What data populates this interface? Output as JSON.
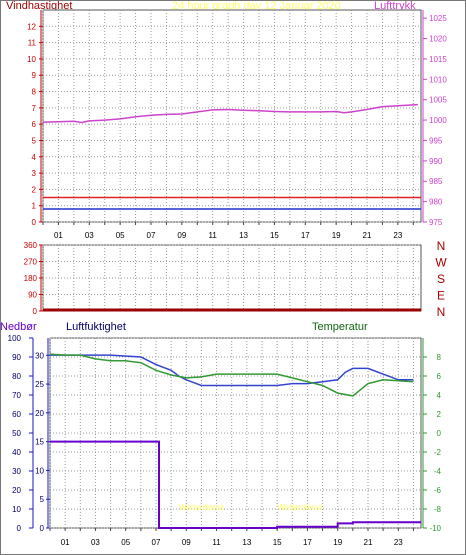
{
  "title": "24 hour graph day   12 Januar 2020",
  "colors": {
    "wind_label": "#990000",
    "title": "#ffff66",
    "pressure": "#cc44cc",
    "wind_red": "#dd2222",
    "wind_blue": "#2233cc",
    "dir_axis": "#aa0000",
    "rain": "#6600cc",
    "humidity": "#3344cc",
    "temperature": "#339933",
    "axis_red": "#cc0000",
    "axis_blue": "#1a1acc",
    "grid": "#9a9a9a"
  },
  "x_labels": [
    "01",
    "03",
    "05",
    "07",
    "09",
    "11",
    "13",
    "15",
    "17",
    "19",
    "21",
    "23"
  ],
  "chart_data": [
    {
      "type": "line",
      "left_label": "Vindhastighet",
      "right_label": "Lufttrykk",
      "left_ticks": [
        "0",
        "1",
        "2",
        "3",
        "4",
        "5",
        "6",
        "7",
        "8",
        "9",
        "10",
        "11",
        "12"
      ],
      "right_ticks": [
        "975",
        "980",
        "985",
        "990",
        "995",
        "1000",
        "1005",
        "1010",
        "1015",
        "1020",
        "1025"
      ],
      "ylim_left": [
        0,
        13
      ],
      "ylim_right": [
        975,
        1027
      ],
      "xlim": [
        0,
        24.5
      ],
      "series": [
        {
          "role": "pressure",
          "axis": "right",
          "x": [
            0,
            1,
            2,
            2.5,
            3,
            4,
            5,
            6,
            7,
            8,
            9,
            10,
            11,
            12,
            13,
            14,
            15,
            16,
            17,
            18,
            19,
            19.5,
            20,
            21,
            22,
            23,
            24.3
          ],
          "y": [
            999.5,
            999.6,
            999.7,
            999.4,
            999.8,
            1000,
            1000.3,
            1000.8,
            1001.2,
            1001.4,
            1001.5,
            1002,
            1002.5,
            1002.6,
            1002.4,
            1002.3,
            1002.1,
            1002,
            1002,
            1002,
            1002.1,
            1001.8,
            1002,
            1002.6,
            1003.3,
            1003.5,
            1003.8
          ]
        },
        {
          "role": "wind_red",
          "axis": "left",
          "x": [
            0,
            24.5
          ],
          "y": [
            1.5,
            1.5
          ]
        },
        {
          "role": "wind_blue",
          "axis": "left",
          "x": [
            0,
            24.5
          ],
          "y": [
            0.8,
            0.8
          ]
        }
      ]
    },
    {
      "type": "line",
      "left_ticks": [
        "0",
        "90",
        "180",
        "270",
        "360"
      ],
      "right_ticks": [
        "N",
        "E",
        "S",
        "W",
        "N"
      ],
      "ylim": [
        0,
        360
      ],
      "series": [
        {
          "role": "direction",
          "x": [
            0,
            24.5
          ],
          "y": [
            0,
            0
          ]
        }
      ]
    },
    {
      "type": "line",
      "labels": {
        "rain": "Nedbør",
        "humidity": "Luftfuktighet",
        "temperature": "Temperatur"
      },
      "rain_ticks": [
        "0",
        "5",
        "10",
        "15",
        "20",
        "25",
        "30"
      ],
      "humidity_ticks": [
        "0",
        "10",
        "20",
        "30",
        "40",
        "50",
        "60",
        "70",
        "80",
        "90",
        "100"
      ],
      "temp_ticks": [
        "-10",
        "-8",
        "-6",
        "-4",
        "-2",
        "0",
        "2",
        "4",
        "6",
        "8"
      ],
      "ylim_humidity": [
        0,
        100
      ],
      "ylim_temp": [
        -10,
        10
      ],
      "annotations": [
        {
          "text": "Wetterdienst",
          "x": 10
        },
        {
          "text": "Wetterdienst",
          "x": 16.5
        }
      ],
      "series": [
        {
          "role": "rain",
          "axis": "rain",
          "x": [
            0,
            7.2,
            7.2,
            15,
            15,
            19,
            19,
            20,
            20,
            24.5
          ],
          "y": [
            15,
            15,
            0,
            0,
            0.2,
            0.2,
            0.8,
            0.8,
            1,
            1
          ]
        },
        {
          "role": "humidity",
          "axis": "humidity",
          "x": [
            0,
            2,
            4,
            6,
            7,
            8,
            8.5,
            9,
            10,
            11,
            13,
            15,
            16,
            17,
            18,
            19,
            19.5,
            20,
            21,
            22,
            23,
            24
          ],
          "y": [
            91,
            91,
            91,
            90,
            86,
            83,
            80,
            78,
            75,
            75,
            75,
            75,
            76,
            76,
            77,
            78,
            82,
            84,
            84,
            81,
            78,
            78
          ]
        },
        {
          "role": "temperature",
          "axis": "temp",
          "x": [
            0,
            1,
            2,
            3,
            4,
            5,
            6,
            7,
            8,
            9,
            10,
            11,
            12,
            13,
            14,
            15,
            16,
            17,
            18,
            19,
            20,
            21,
            22,
            23,
            24
          ],
          "y": [
            8.3,
            8.2,
            8.2,
            7.8,
            7.6,
            7.6,
            7.4,
            6.6,
            6.1,
            5.8,
            5.9,
            6.2,
            6.2,
            6.2,
            6.2,
            6.2,
            5.8,
            5.4,
            5,
            4.2,
            3.9,
            5.2,
            5.6,
            5.5,
            5.4
          ]
        }
      ]
    }
  ]
}
